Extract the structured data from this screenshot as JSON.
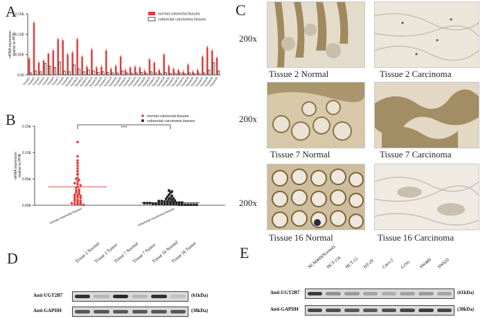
{
  "panels": {
    "a": "A",
    "b": "B",
    "c": "C",
    "d": "D",
    "e": "E"
  },
  "colors": {
    "normal": "#e23a3a",
    "carcinoma": "#222222",
    "tissue_normal_bg": "#d8cfbf",
    "tissue_carcinoma_bg": "#e6dfd2"
  },
  "chart_data": [
    {
      "type": "bar",
      "panel": "A",
      "ylabel": "mRNA expression\nrelative to PPIB",
      "ylim": [
        0,
        0.15
      ],
      "yticks": [
        "0.00",
        "0.05E",
        "0.10E",
        "0.15E"
      ],
      "legend": [
        "normal colorectal tissues",
        "colorectal carcinoma tissues"
      ],
      "legend_position": "top-right",
      "categories": [
        "Tissue1",
        "Tissue2",
        "Tissue3",
        "Tissue4",
        "Tissue5",
        "Tissue6",
        "Tissue7",
        "Tissue8",
        "Tissue9",
        "Tissue10",
        "Tissue11",
        "Tissue12",
        "Tissue13",
        "Tissue14",
        "Tissue15",
        "Tissue16",
        "Tissue17",
        "Tissue18",
        "Tissue19",
        "Tissue20",
        "Tissue21",
        "Tissue22",
        "Tissue23",
        "Tissue24",
        "Tissue25",
        "Tissue26",
        "Tissue27",
        "Tissue28",
        "Tissue29",
        "Tissue30",
        "Tissue31",
        "Tissue32",
        "Tissue33",
        "Tissue34",
        "Tissue35",
        "Tissue36",
        "Tissue37",
        "Tissue38",
        "Tissue39",
        "Tissue40"
      ],
      "series": [
        {
          "name": "normal colorectal tissues",
          "values": [
            0.04,
            0.128,
            0.03,
            0.035,
            0.052,
            0.06,
            0.088,
            0.085,
            0.05,
            0.055,
            0.088,
            0.045,
            0.02,
            0.062,
            0.018,
            0.02,
            0.06,
            0.015,
            0.022,
            0.045,
            0.012,
            0.018,
            0.02,
            0.018,
            0.01,
            0.038,
            0.03,
            0.012,
            0.05,
            0.022,
            0.015,
            0.012,
            0.008,
            0.025,
            0.008,
            0.012,
            0.045,
            0.068,
            0.06,
            0.042
          ]
        },
        {
          "name": "colorectal carcinoma tissues",
          "values": [
            0.005,
            0.01,
            0.008,
            0.028,
            0.022,
            0.018,
            0.032,
            0.01,
            0.008,
            0.025,
            0.015,
            0.008,
            0.012,
            0.01,
            0.006,
            0.008,
            0.006,
            0.005,
            0.005,
            0.01,
            0.005,
            0.004,
            0.005,
            0.006,
            0.004,
            0.008,
            0.005,
            0.004,
            0.006,
            0.004,
            0.004,
            0.005,
            0.003,
            0.005,
            0.003,
            0.004,
            0.005,
            0.012,
            0.03,
            0.01
          ]
        }
      ]
    },
    {
      "type": "scatter",
      "panel": "B",
      "ylabel": "mRNA expression\nrelative to PPIB",
      "ylim": [
        0,
        0.15
      ],
      "yticks": [
        "0.00E",
        "0.05E",
        "0.10E",
        "0.15E"
      ],
      "significance": "****",
      "legend": [
        "normal colorectal tissues",
        "colorectal carcinoma tissues"
      ],
      "legend_position": "top-right",
      "categories": [
        "normal colorectal tissues",
        "colorectal carcinoma tissues"
      ],
      "means": [
        0.035,
        0.005
      ],
      "series": [
        {
          "name": "normal colorectal tissues",
          "values": [
            0.12,
            0.093,
            0.085,
            0.08,
            0.075,
            0.07,
            0.065,
            0.06,
            0.058,
            0.052,
            0.05,
            0.048,
            0.045,
            0.042,
            0.04,
            0.038,
            0.035,
            0.033,
            0.03,
            0.028,
            0.026,
            0.024,
            0.022,
            0.02,
            0.019,
            0.018,
            0.016,
            0.015,
            0.014,
            0.012,
            0.01,
            0.009,
            0.008,
            0.006,
            0.005,
            0.004,
            0.003,
            0.002,
            0.002,
            0.001
          ]
        },
        {
          "name": "colorectal carcinoma tissues",
          "values": [
            0.028,
            0.026,
            0.024,
            0.02,
            0.018,
            0.016,
            0.014,
            0.013,
            0.012,
            0.011,
            0.01,
            0.009,
            0.008,
            0.008,
            0.007,
            0.007,
            0.006,
            0.006,
            0.005,
            0.005,
            0.005,
            0.004,
            0.004,
            0.004,
            0.003,
            0.003,
            0.003,
            0.003,
            0.002,
            0.002,
            0.002,
            0.002,
            0.002,
            0.001,
            0.001,
            0.001,
            0.001,
            0.001,
            0.001,
            0.001
          ]
        }
      ]
    }
  ],
  "histology": {
    "magnification": [
      "200x",
      "200x",
      "200x"
    ],
    "captions": [
      "Tissue 2 Normal",
      "Tissue 2 Carcinoma",
      "Tissue 7 Normal",
      "Tissue 7 Carcinoma",
      "Tissue 16 Normal",
      "Tissue 16 Carcinoma"
    ]
  },
  "blot_d": {
    "lanes": [
      "Tissue 2 Normal",
      "Tissue 2 Tumor",
      "Tissue 7 Normal",
      "Tissue 7 Tumor",
      "Tissue 16 Normal",
      "Tissue 16 Tumor"
    ],
    "rows": [
      {
        "label": "Anti-UGT2B7",
        "size": "(61kDa)",
        "intensity": [
          0.9,
          0.2,
          0.95,
          0.2,
          0.9,
          0.15
        ]
      },
      {
        "label": "Anti-GAPDH",
        "size": "(38kDa)",
        "intensity": [
          0.7,
          0.7,
          0.7,
          0.7,
          0.7,
          0.7
        ]
      }
    ]
  },
  "blot_e": {
    "lanes": [
      "NCM460(Normal)",
      "HCT-116",
      "HCT-15",
      "HT-29",
      "Caco-2",
      "LoVo",
      "SW480",
      "SW620"
    ],
    "rows": [
      {
        "label": "Anti-UGT2B7",
        "size": "(61kDa)",
        "intensity": [
          0.85,
          0.4,
          0.35,
          0.3,
          0.25,
          0.3,
          0.35,
          0.3
        ]
      },
      {
        "label": "Anti-GAPDH",
        "size": "(38kDa)",
        "intensity": [
          0.8,
          0.75,
          0.7,
          0.7,
          0.75,
          0.8,
          0.85,
          0.8
        ]
      }
    ]
  }
}
